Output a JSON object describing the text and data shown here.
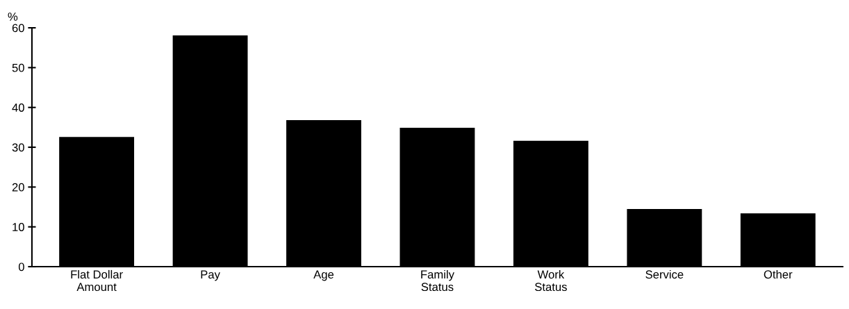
{
  "chart_data": {
    "type": "bar",
    "ylabel": "%",
    "categories": [
      "Flat Dollar\nAmount",
      "Pay",
      "Age",
      "Family\nStatus",
      "Work\nStatus",
      "Service",
      "Other"
    ],
    "values": [
      32.6,
      58.1,
      36.8,
      34.9,
      31.6,
      14.5,
      13.4
    ],
    "color": "#000000",
    "ylim": [
      0,
      60
    ],
    "yticks": [
      0,
      10,
      20,
      30,
      40,
      50,
      60
    ],
    "grid": false
  }
}
